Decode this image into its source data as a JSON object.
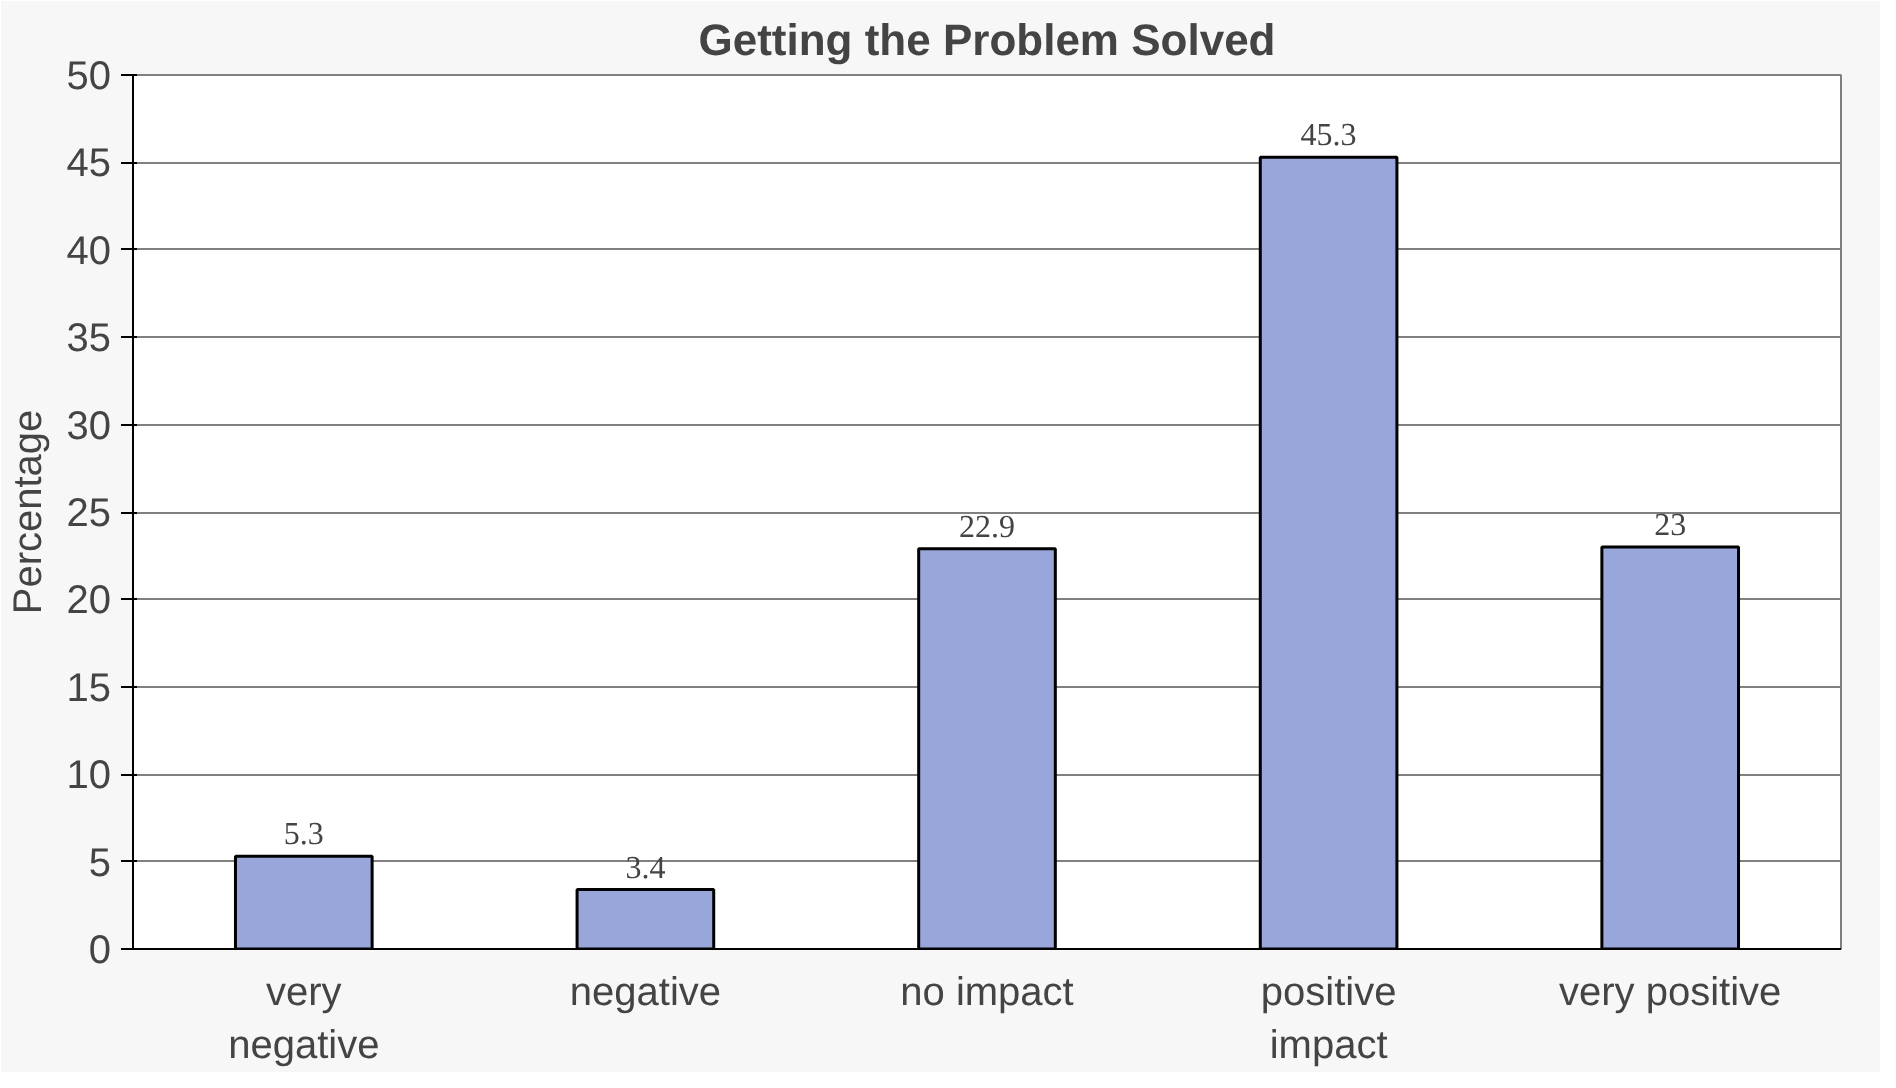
{
  "chart_data": {
    "type": "bar",
    "title": "Getting the Problem Solved",
    "ylabel": "Percentage",
    "categories": [
      "very\nnegative",
      "negative",
      "no impact",
      "positive\nimpact",
      "very positive"
    ],
    "values": [
      5.3,
      3.4,
      22.9,
      45.3,
      23
    ],
    "color": "#99a6d9",
    "ylim": [
      0,
      50
    ],
    "yticks": [
      0,
      5,
      10,
      15,
      20,
      25,
      30,
      35,
      40,
      45,
      50
    ],
    "grid": "y",
    "data_labels": true
  }
}
